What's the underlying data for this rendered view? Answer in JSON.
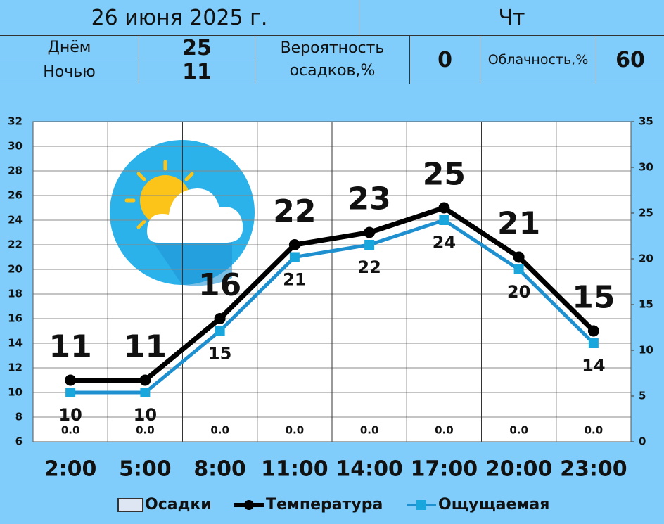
{
  "header": {
    "date": "26 июня 2025 г.",
    "weekday": "Чт",
    "day_label": "Днём",
    "day_value": 25,
    "night_label": "Ночью",
    "night_value": 11,
    "precip_label": "Вероятность осадков,%",
    "precip_value": 0,
    "cloud_label": "Облачность,%",
    "cloud_value": 60
  },
  "chart_data": {
    "type": "line",
    "categories": [
      "2:00",
      "5:00",
      "8:00",
      "11:00",
      "14:00",
      "17:00",
      "20:00",
      "23:00"
    ],
    "series": [
      {
        "name": "Осадки",
        "type": "bar",
        "axis": "y2",
        "color": "#dde6f2",
        "values": [
          0,
          0,
          0,
          0,
          0,
          0,
          0,
          0
        ],
        "value_labels": [
          "0.0",
          "0.0",
          "0.0",
          "0.0",
          "0.0",
          "0.0",
          "0.0",
          "0.0"
        ]
      },
      {
        "name": "Температура",
        "color": "#000000",
        "values": [
          11,
          11,
          16,
          22,
          23,
          25,
          21,
          15
        ]
      },
      {
        "name": "Ощущаемая",
        "color": "#1e8fcf",
        "values": [
          10,
          10,
          15,
          21,
          22,
          24,
          20,
          14
        ]
      }
    ],
    "ylim": [
      6,
      32
    ],
    "yticks": [
      6,
      8,
      10,
      12,
      14,
      16,
      18,
      20,
      22,
      24,
      26,
      28,
      30,
      32
    ],
    "y2lim": [
      0,
      35
    ],
    "y2ticks": [
      0,
      5,
      10,
      15,
      20,
      25,
      30,
      35
    ],
    "grid": true
  }
}
